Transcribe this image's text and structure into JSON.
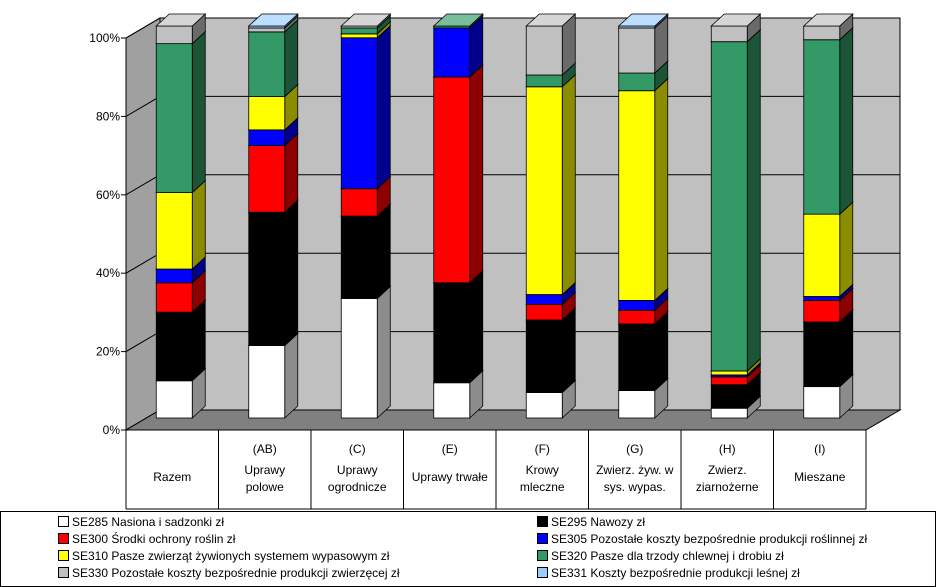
{
  "chart_data": {
    "type": "bar",
    "stacked": "percent",
    "categories": [
      {
        "code": "",
        "name": "Razem"
      },
      {
        "code": "(AB)",
        "name": "Uprawy polowe"
      },
      {
        "code": "(C)",
        "name": "Uprawy ogrodnicze"
      },
      {
        "code": "(E)",
        "name": "Uprawy trwałe"
      },
      {
        "code": "(F)",
        "name": "Krowy mleczne"
      },
      {
        "code": "(G)",
        "name": "Zwierz. żyw. w sys. wypas."
      },
      {
        "code": "(H)",
        "name": "Zwierz. ziarnożerne"
      },
      {
        "code": "(I)",
        "name": "Mieszane"
      }
    ],
    "yticks": [
      "0%",
      "20%",
      "40%",
      "60%",
      "80%",
      "100%"
    ],
    "ylim": [
      0,
      100
    ],
    "grid": true,
    "legend_position": "bottom",
    "series": [
      {
        "name": "SE285 Nasiona i sadzonki zł",
        "color": "#ffffff",
        "values": [
          9.5,
          18.5,
          30.5,
          9,
          6.5,
          7,
          2.5,
          8
        ]
      },
      {
        "name": "SE295 Nawozy zł",
        "color": "#000000",
        "values": [
          17.5,
          34,
          21,
          25.5,
          18.5,
          17,
          6,
          16.5
        ]
      },
      {
        "name": "SE300 Środki ochrony roślin zł",
        "color": "#ff0000",
        "values": [
          7.5,
          17,
          7,
          52.5,
          4,
          3.5,
          2,
          5.5
        ]
      },
      {
        "name": "SE305 Pozostałe koszty bezpośrednie produkcji roślinnej zł",
        "color": "#0000ff",
        "values": [
          3.5,
          4,
          38.5,
          12.5,
          2.5,
          2.5,
          0.5,
          1
        ]
      },
      {
        "name": "SE310 Pasze zwierząt żywionych systemem wypasowym zł",
        "color": "#ffff00",
        "values": [
          19.5,
          8.5,
          1,
          0,
          53,
          53.5,
          1,
          21
        ]
      },
      {
        "name": "SE320 Pasze dla trzody chlewnej i drobiu zł",
        "color": "#339966",
        "values": [
          38,
          16.5,
          1.5,
          0.5,
          3,
          4.5,
          84,
          44.5
        ]
      },
      {
        "name": "SE330 Pozostałe koszty bezpośrednie produkcji zwierzęcej zł",
        "color": "#c0c0c0",
        "values": [
          4.5,
          1,
          0.5,
          0,
          12.5,
          11.5,
          4,
          3.5
        ]
      },
      {
        "name": "SE331 Koszty bezpośrednie produkcji leśnej zł",
        "color": "#99ccff",
        "values": [
          0,
          0.5,
          0,
          0,
          0,
          0.5,
          0,
          0
        ]
      }
    ]
  }
}
